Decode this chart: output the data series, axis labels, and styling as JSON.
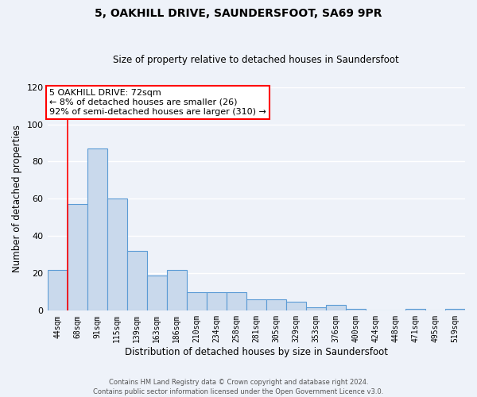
{
  "title": "5, OAKHILL DRIVE, SAUNDERSFOOT, SA69 9PR",
  "subtitle": "Size of property relative to detached houses in Saundersfoot",
  "xlabel": "Distribution of detached houses by size in Saundersfoot",
  "ylabel": "Number of detached properties",
  "bar_values": [
    22,
    57,
    87,
    60,
    32,
    19,
    22,
    10,
    10,
    10,
    6,
    6,
    5,
    2,
    3,
    1,
    0,
    0,
    1,
    0,
    1
  ],
  "bar_labels": [
    "44sqm",
    "68sqm",
    "91sqm",
    "115sqm",
    "139sqm",
    "163sqm",
    "186sqm",
    "210sqm",
    "234sqm",
    "258sqm",
    "281sqm",
    "305sqm",
    "329sqm",
    "353sqm",
    "376sqm",
    "400sqm",
    "424sqm",
    "448sqm",
    "471sqm",
    "495sqm",
    "519sqm"
  ],
  "bar_color": "#c9d9ec",
  "bar_edge_color": "#5b9bd5",
  "ylim": [
    0,
    120
  ],
  "yticks": [
    0,
    20,
    40,
    60,
    80,
    100,
    120
  ],
  "annotation_text": "5 OAKHILL DRIVE: 72sqm\n← 8% of detached houses are smaller (26)\n92% of semi-detached houses are larger (310) →",
  "annotation_box_color": "white",
  "annotation_box_edge_color": "red",
  "red_line_bar_index": 0.5,
  "footer": "Contains HM Land Registry data © Crown copyright and database right 2024.\nContains public sector information licensed under the Open Government Licence v3.0.",
  "bg_color": "#eef2f9",
  "grid_color": "#ffffff"
}
